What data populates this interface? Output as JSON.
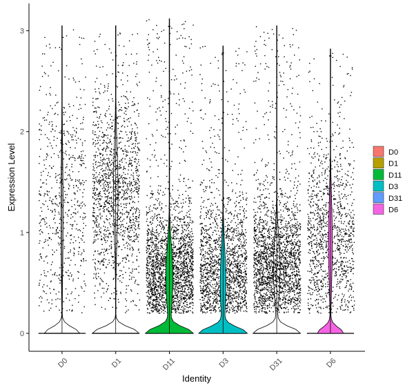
{
  "chart_data": {
    "type": "violin",
    "xlabel": "Identity",
    "ylabel": "Expression Level",
    "ylim": [
      -0.18,
      3.3
    ],
    "yticks": [
      0,
      1,
      2,
      3
    ],
    "categories": [
      "D0",
      "D1",
      "D11",
      "D3",
      "D31",
      "D6"
    ],
    "series": [
      {
        "name": "D0",
        "color": "#F8766D",
        "max": 3.05,
        "frac_nonzero": 0.25,
        "mode": 1.2,
        "spread": 0.7
      },
      {
        "name": "D1",
        "color": "#B79F00",
        "max": 3.05,
        "frac_nonzero": 0.55,
        "mode": 1.4,
        "spread": 0.5
      },
      {
        "name": "D11",
        "color": "#00BA38",
        "max": 3.12,
        "frac_nonzero": 0.85,
        "mode": 0.55,
        "spread": 0.35
      },
      {
        "name": "D3",
        "color": "#00BFC4",
        "max": 2.85,
        "frac_nonzero": 0.65,
        "mode": 0.5,
        "spread": 0.4
      },
      {
        "name": "D31",
        "color": "#619CFF",
        "max": 3.05,
        "frac_nonzero": 0.8,
        "mode": 0.65,
        "spread": 0.35
      },
      {
        "name": "D6",
        "color": "#F564E3",
        "max": 2.82,
        "frac_nonzero": 0.45,
        "mode": 0.9,
        "spread": 0.5
      }
    ],
    "legend": {
      "position": "right",
      "entries": [
        "D0",
        "D1",
        "D11",
        "D3",
        "D31",
        "D6"
      ]
    },
    "grid": false,
    "x_tick_rotation": 45
  }
}
